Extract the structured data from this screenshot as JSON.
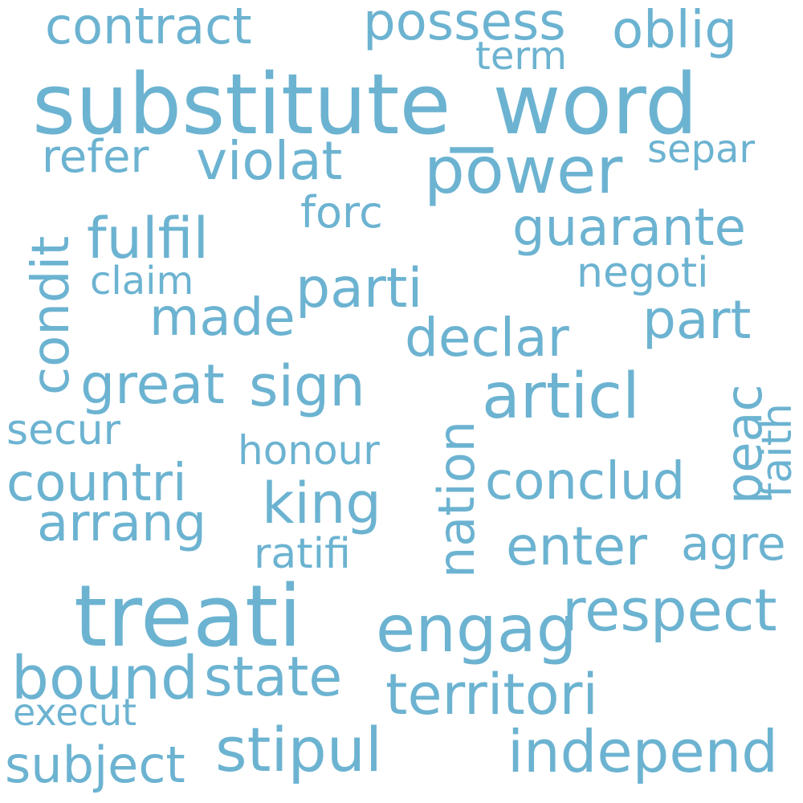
{
  "color": "#6cb3d1",
  "words": [
    "substitute_word",
    "treati",
    "power",
    "articl",
    "nation",
    "possess",
    "contract",
    "oblig",
    "term",
    "violat",
    "refer",
    "separ",
    "forc",
    "guarante",
    "fulfil",
    "condit",
    "negoti",
    "claim",
    "parti",
    "made",
    "part",
    "declar",
    "great",
    "sign",
    "peac",
    "faith",
    "secur",
    "honour",
    "countri",
    "conclud",
    "king",
    "arrang",
    "enter",
    "agre",
    "ratifi",
    "engag",
    "respect",
    "bound",
    "state",
    "territori",
    "execut",
    "stipul",
    "independ",
    "subject"
  ]
}
